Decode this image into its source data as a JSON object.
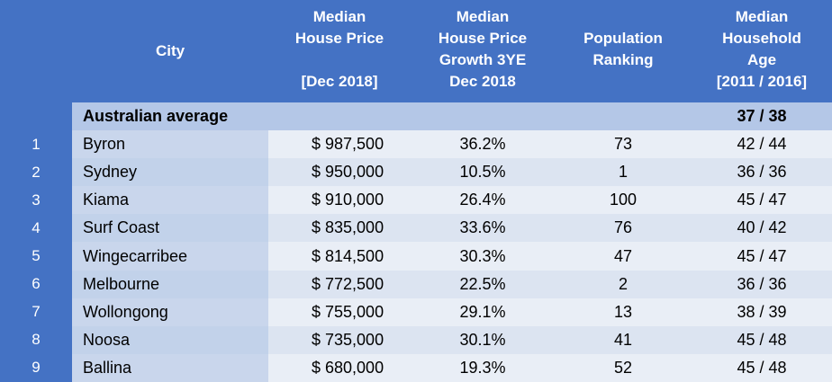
{
  "headers": {
    "city": "City",
    "price": [
      "Median",
      "House Price",
      "",
      "[Dec 2018]"
    ],
    "growth": [
      "Median",
      "House Price",
      "Growth 3YE",
      "Dec 2018"
    ],
    "population": [
      "",
      "Population",
      "Ranking",
      ""
    ],
    "age": [
      "Median",
      "Household",
      "Age",
      "[2011 / 2016]"
    ]
  },
  "average": {
    "label": "Australian average",
    "price": "",
    "growth": "",
    "population": "",
    "age": "37 / 38"
  },
  "rows": [
    {
      "rank": "1",
      "city": "Byron",
      "price": "$ 987,500",
      "growth": "36.2%",
      "population": "73",
      "age": "42 / 44"
    },
    {
      "rank": "2",
      "city": "Sydney",
      "price": "$ 950,000",
      "growth": "10.5%",
      "population": "1",
      "age": "36 / 36"
    },
    {
      "rank": "3",
      "city": "Kiama",
      "price": "$ 910,000",
      "growth": "26.4%",
      "population": "100",
      "age": "45 / 47"
    },
    {
      "rank": "4",
      "city": "Surf Coast",
      "price": "$ 835,000",
      "growth": "33.6%",
      "population": "76",
      "age": "40 / 42"
    },
    {
      "rank": "5",
      "city": "Wingecarribee",
      "price": "$ 814,500",
      "growth": "30.3%",
      "population": "47",
      "age": "45 / 47"
    },
    {
      "rank": "6",
      "city": "Melbourne",
      "price": "$ 772,500",
      "growth": "22.5%",
      "population": "2",
      "age": "36 / 36"
    },
    {
      "rank": "7",
      "city": "Wollongong",
      "price": "$ 755,000",
      "growth": "29.1%",
      "population": "13",
      "age": "38 / 39"
    },
    {
      "rank": "8",
      "city": "Noosa",
      "price": "$ 735,000",
      "growth": "30.1%",
      "population": "41",
      "age": "45 / 48"
    },
    {
      "rank": "9",
      "city": "Ballina",
      "price": "$ 680,000",
      "growth": "19.3%",
      "population": "52",
      "age": "45 / 48"
    }
  ],
  "colors": {
    "header_bg": "#4472c4",
    "header_text": "#ffffff",
    "average_bg": "#b4c7e7",
    "row_bg": "#dce4f1"
  }
}
